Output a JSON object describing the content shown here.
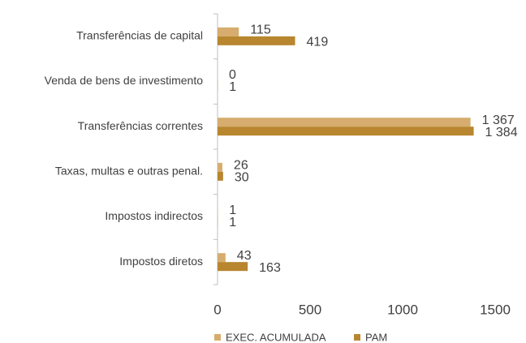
{
  "chart_data": {
    "type": "barh",
    "categories": [
      "Transferências de capital",
      "Venda de bens de investimento",
      "Transferências correntes",
      "Taxas, multas e outras penal.",
      "Impostos indirectos",
      "Impostos diretos"
    ],
    "series": [
      {
        "name": "EXEC. ACUMULADA",
        "color": "#d6ad6e",
        "values": [
          115,
          0,
          1367,
          26,
          1,
          43
        ],
        "value_labels": [
          "115",
          "0",
          "1 367",
          "26",
          "1",
          "43"
        ]
      },
      {
        "name": "PAM",
        "color": "#b8862f",
        "values": [
          419,
          1,
          1384,
          30,
          1,
          163
        ],
        "value_labels": [
          "419",
          "1",
          "1 384",
          "30",
          "1",
          "163"
        ]
      }
    ],
    "xlim": [
      0,
      1500
    ],
    "xticks": [
      0,
      500,
      1000,
      1500
    ],
    "grid": false,
    "legend": "bottom"
  }
}
